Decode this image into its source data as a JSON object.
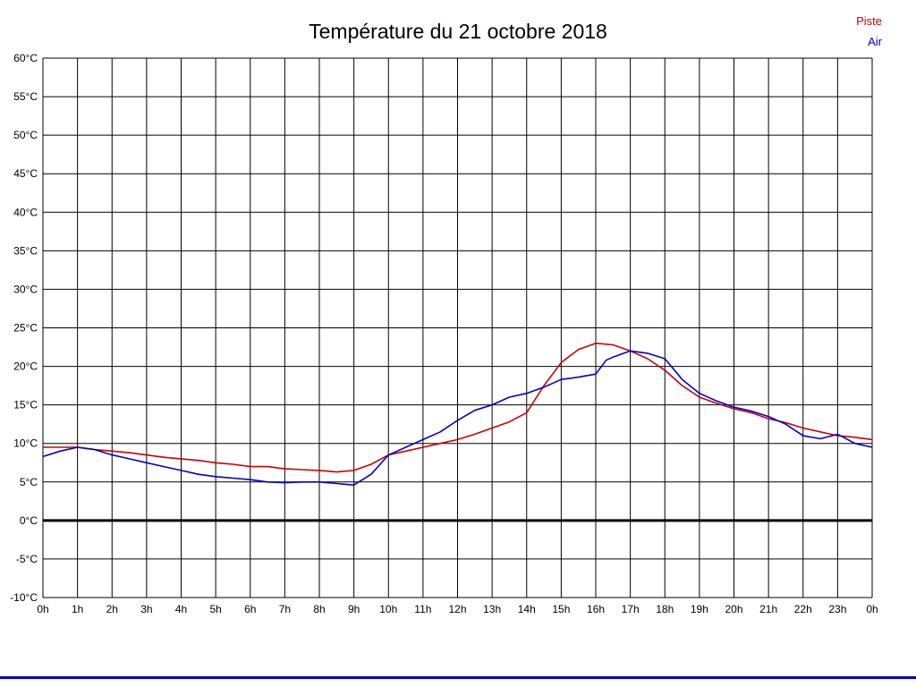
{
  "title": "Température du 21 octobre 2018",
  "legend": {
    "items": [
      {
        "label": "Piste",
        "color": "#cc0000"
      },
      {
        "label": "Air",
        "color": "#0000cc"
      }
    ]
  },
  "bottom_bar_color": "#0000cc",
  "chart_data": {
    "type": "line",
    "title": "Température du 21 octobre 2018",
    "xlabel": "",
    "ylabel": "",
    "xlim": [
      0,
      24
    ],
    "ylim": [
      -10,
      60
    ],
    "grid": true,
    "grid_color": "#000000",
    "zero_line": {
      "value": 0,
      "color": "#000000",
      "width": 3
    },
    "x_tick_labels": [
      "0h",
      "1h",
      "2h",
      "3h",
      "4h",
      "5h",
      "6h",
      "7h",
      "8h",
      "9h",
      "10h",
      "11h",
      "12h",
      "13h",
      "14h",
      "15h",
      "16h",
      "17h",
      "18h",
      "19h",
      "20h",
      "21h",
      "22h",
      "23h",
      "0h"
    ],
    "y_tick_labels": [
      "60°C",
      "55°C",
      "50°C",
      "45°C",
      "40°C",
      "35°C",
      "30°C",
      "25°C",
      "20°C",
      "15°C",
      "10°C",
      "5°C",
      "0°C",
      "-5°C",
      "-10°C"
    ],
    "y_tick_values": [
      60,
      55,
      50,
      45,
      40,
      35,
      30,
      25,
      20,
      15,
      10,
      5,
      0,
      -5,
      -10
    ],
    "legend_position": "top-right",
    "series": [
      {
        "name": "Piste",
        "color": "#cc0000",
        "points": [
          [
            0,
            9.5
          ],
          [
            0.5,
            9.5
          ],
          [
            1,
            9.5
          ],
          [
            1.5,
            9.2
          ],
          [
            2,
            9.0
          ],
          [
            2.5,
            8.8
          ],
          [
            3,
            8.5
          ],
          [
            3.5,
            8.2
          ],
          [
            4,
            8.0
          ],
          [
            4.5,
            7.8
          ],
          [
            5,
            7.5
          ],
          [
            5.5,
            7.3
          ],
          [
            6,
            7.0
          ],
          [
            6.5,
            7.0
          ],
          [
            7,
            6.7
          ],
          [
            7.5,
            6.6
          ],
          [
            8,
            6.5
          ],
          [
            8.5,
            6.3
          ],
          [
            9,
            6.5
          ],
          [
            9.5,
            7.3
          ],
          [
            10,
            8.5
          ],
          [
            10.5,
            9.0
          ],
          [
            11,
            9.5
          ],
          [
            11.5,
            10.0
          ],
          [
            12,
            10.5
          ],
          [
            12.5,
            11.2
          ],
          [
            13,
            12.0
          ],
          [
            13.5,
            12.8
          ],
          [
            14,
            14.0
          ],
          [
            14.5,
            17.5
          ],
          [
            15,
            20.5
          ],
          [
            15.5,
            22.2
          ],
          [
            16,
            23.0
          ],
          [
            16.5,
            22.8
          ],
          [
            17,
            22.0
          ],
          [
            17.5,
            21.0
          ],
          [
            18,
            19.5
          ],
          [
            18.5,
            17.5
          ],
          [
            19,
            16.0
          ],
          [
            19.5,
            15.2
          ],
          [
            20,
            14.5
          ],
          [
            20.5,
            14.0
          ],
          [
            21,
            13.2
          ],
          [
            21.5,
            12.7
          ],
          [
            22,
            12.0
          ],
          [
            22.5,
            11.5
          ],
          [
            23,
            11.0
          ],
          [
            23.5,
            10.8
          ],
          [
            24,
            10.5
          ]
        ]
      },
      {
        "name": "Air",
        "color": "#0000cc",
        "points": [
          [
            0,
            8.3
          ],
          [
            0.5,
            9.0
          ],
          [
            1,
            9.5
          ],
          [
            1.5,
            9.2
          ],
          [
            2,
            8.5
          ],
          [
            2.5,
            8.0
          ],
          [
            3,
            7.5
          ],
          [
            3.5,
            7.0
          ],
          [
            4,
            6.5
          ],
          [
            4.5,
            6.0
          ],
          [
            5,
            5.7
          ],
          [
            5.5,
            5.5
          ],
          [
            6,
            5.3
          ],
          [
            6.5,
            5.0
          ],
          [
            7,
            4.9
          ],
          [
            7.5,
            5.0
          ],
          [
            8,
            5.0
          ],
          [
            8.5,
            4.8
          ],
          [
            9,
            4.6
          ],
          [
            9.5,
            6.0
          ],
          [
            10,
            8.5
          ],
          [
            10.5,
            9.5
          ],
          [
            11,
            10.5
          ],
          [
            11.5,
            11.5
          ],
          [
            12,
            13.0
          ],
          [
            12.5,
            14.3
          ],
          [
            13,
            15.0
          ],
          [
            13.5,
            16.0
          ],
          [
            14,
            16.5
          ],
          [
            14.5,
            17.3
          ],
          [
            15,
            18.3
          ],
          [
            15.5,
            18.6
          ],
          [
            16,
            19.0
          ],
          [
            16.3,
            20.8
          ],
          [
            16.5,
            21.2
          ],
          [
            17,
            22.0
          ],
          [
            17.5,
            21.7
          ],
          [
            18,
            21.0
          ],
          [
            18.5,
            18.3
          ],
          [
            19,
            16.5
          ],
          [
            19.5,
            15.5
          ],
          [
            20,
            14.7
          ],
          [
            20.5,
            14.2
          ],
          [
            21,
            13.5
          ],
          [
            21.5,
            12.5
          ],
          [
            22,
            11.0
          ],
          [
            22.5,
            10.6
          ],
          [
            23,
            11.2
          ],
          [
            23.5,
            10.0
          ],
          [
            24,
            9.5
          ]
        ]
      }
    ]
  }
}
